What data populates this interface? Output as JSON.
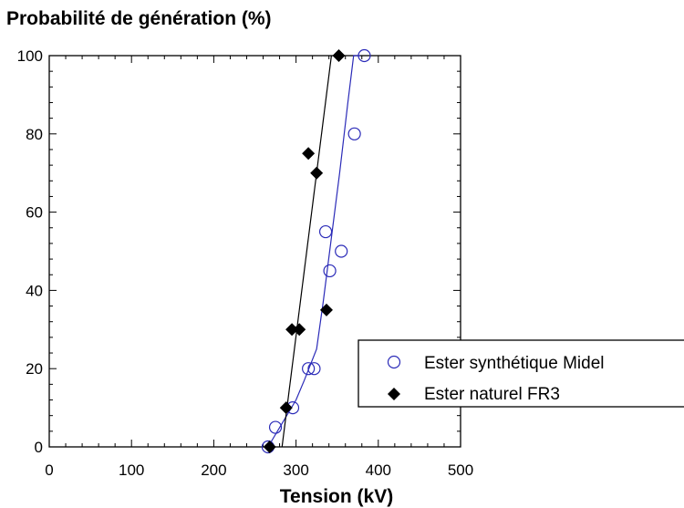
{
  "chart_data": {
    "type": "scatter",
    "title": "Probabilité de génération (%)",
    "xlabel": "Tension (kV)",
    "ylabel": "",
    "xlim": [
      0,
      500
    ],
    "ylim": [
      0,
      100
    ],
    "x_ticks": [
      "0",
      "100",
      "200",
      "300",
      "400",
      "500"
    ],
    "y_ticks": [
      "0",
      "20",
      "40",
      "60",
      "80",
      "100"
    ],
    "grid": false,
    "legend_position": "right",
    "series": [
      {
        "name": "Ester synthétique Midel",
        "marker": "open-circle",
        "color": "#2b2bb8",
        "points": [
          [
            266,
            0
          ],
          [
            275,
            5
          ],
          [
            296,
            10
          ],
          [
            315,
            20
          ],
          [
            322,
            20
          ],
          [
            336,
            55
          ],
          [
            341,
            45
          ],
          [
            355,
            50
          ],
          [
            371,
            80
          ],
          [
            383,
            100
          ]
        ],
        "fit_line": [
          [
            266,
            0
          ],
          [
            283,
            6
          ],
          [
            300,
            12
          ],
          [
            310,
            17
          ],
          [
            325,
            25
          ],
          [
            333,
            37
          ],
          [
            353,
            70
          ],
          [
            363,
            88
          ],
          [
            370,
            100
          ],
          [
            378,
            100
          ]
        ]
      },
      {
        "name": "Ester naturel FR3",
        "marker": "filled-diamond",
        "color": "#000000",
        "points": [
          [
            268,
            0
          ],
          [
            288,
            10
          ],
          [
            295,
            30
          ],
          [
            304,
            30
          ],
          [
            315,
            75
          ],
          [
            325,
            70
          ],
          [
            337,
            35
          ],
          [
            352,
            100
          ]
        ],
        "fit_line": [
          [
            283,
            0
          ],
          [
            343,
            100
          ]
        ]
      }
    ]
  }
}
